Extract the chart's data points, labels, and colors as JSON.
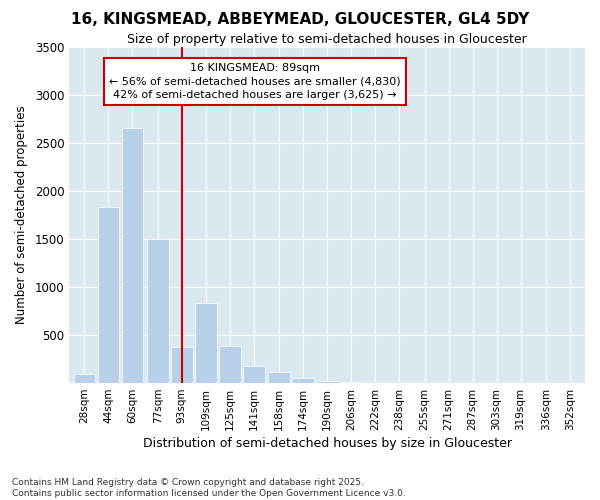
{
  "title": "16, KINGSMEAD, ABBEYMEAD, GLOUCESTER, GL4 5DY",
  "subtitle": "Size of property relative to semi-detached houses in Gloucester",
  "xlabel": "Distribution of semi-detached houses by size in Gloucester",
  "ylabel": "Number of semi-detached properties",
  "footnote1": "Contains HM Land Registry data © Crown copyright and database right 2025.",
  "footnote2": "Contains public sector information licensed under the Open Government Licence v3.0.",
  "annotation_title": "16 KINGSMEAD: 89sqm",
  "annotation_line1": "← 56% of semi-detached houses are smaller (4,830)",
  "annotation_line2": "42% of semi-detached houses are larger (3,625) →",
  "subject_value": 93,
  "bar_color": "#b8d0e8",
  "vline_color": "#cc0000",
  "annotation_box_edgecolor": "#cc0000",
  "background_color": "#ffffff",
  "plot_bg_color": "#dce8f0",
  "grid_color": "#ffffff",
  "categories": [
    28,
    44,
    60,
    77,
    93,
    109,
    125,
    141,
    158,
    174,
    190,
    206,
    222,
    238,
    255,
    271,
    287,
    303,
    319,
    336,
    352
  ],
  "values": [
    95,
    1830,
    2650,
    1500,
    380,
    830,
    390,
    180,
    120,
    55,
    20,
    10,
    5,
    3,
    2,
    2,
    1,
    1,
    0,
    0,
    0
  ],
  "ylim": [
    0,
    3500
  ],
  "yticks": [
    0,
    500,
    1000,
    1500,
    2000,
    2500,
    3000,
    3500
  ],
  "bar_spacing": 16
}
